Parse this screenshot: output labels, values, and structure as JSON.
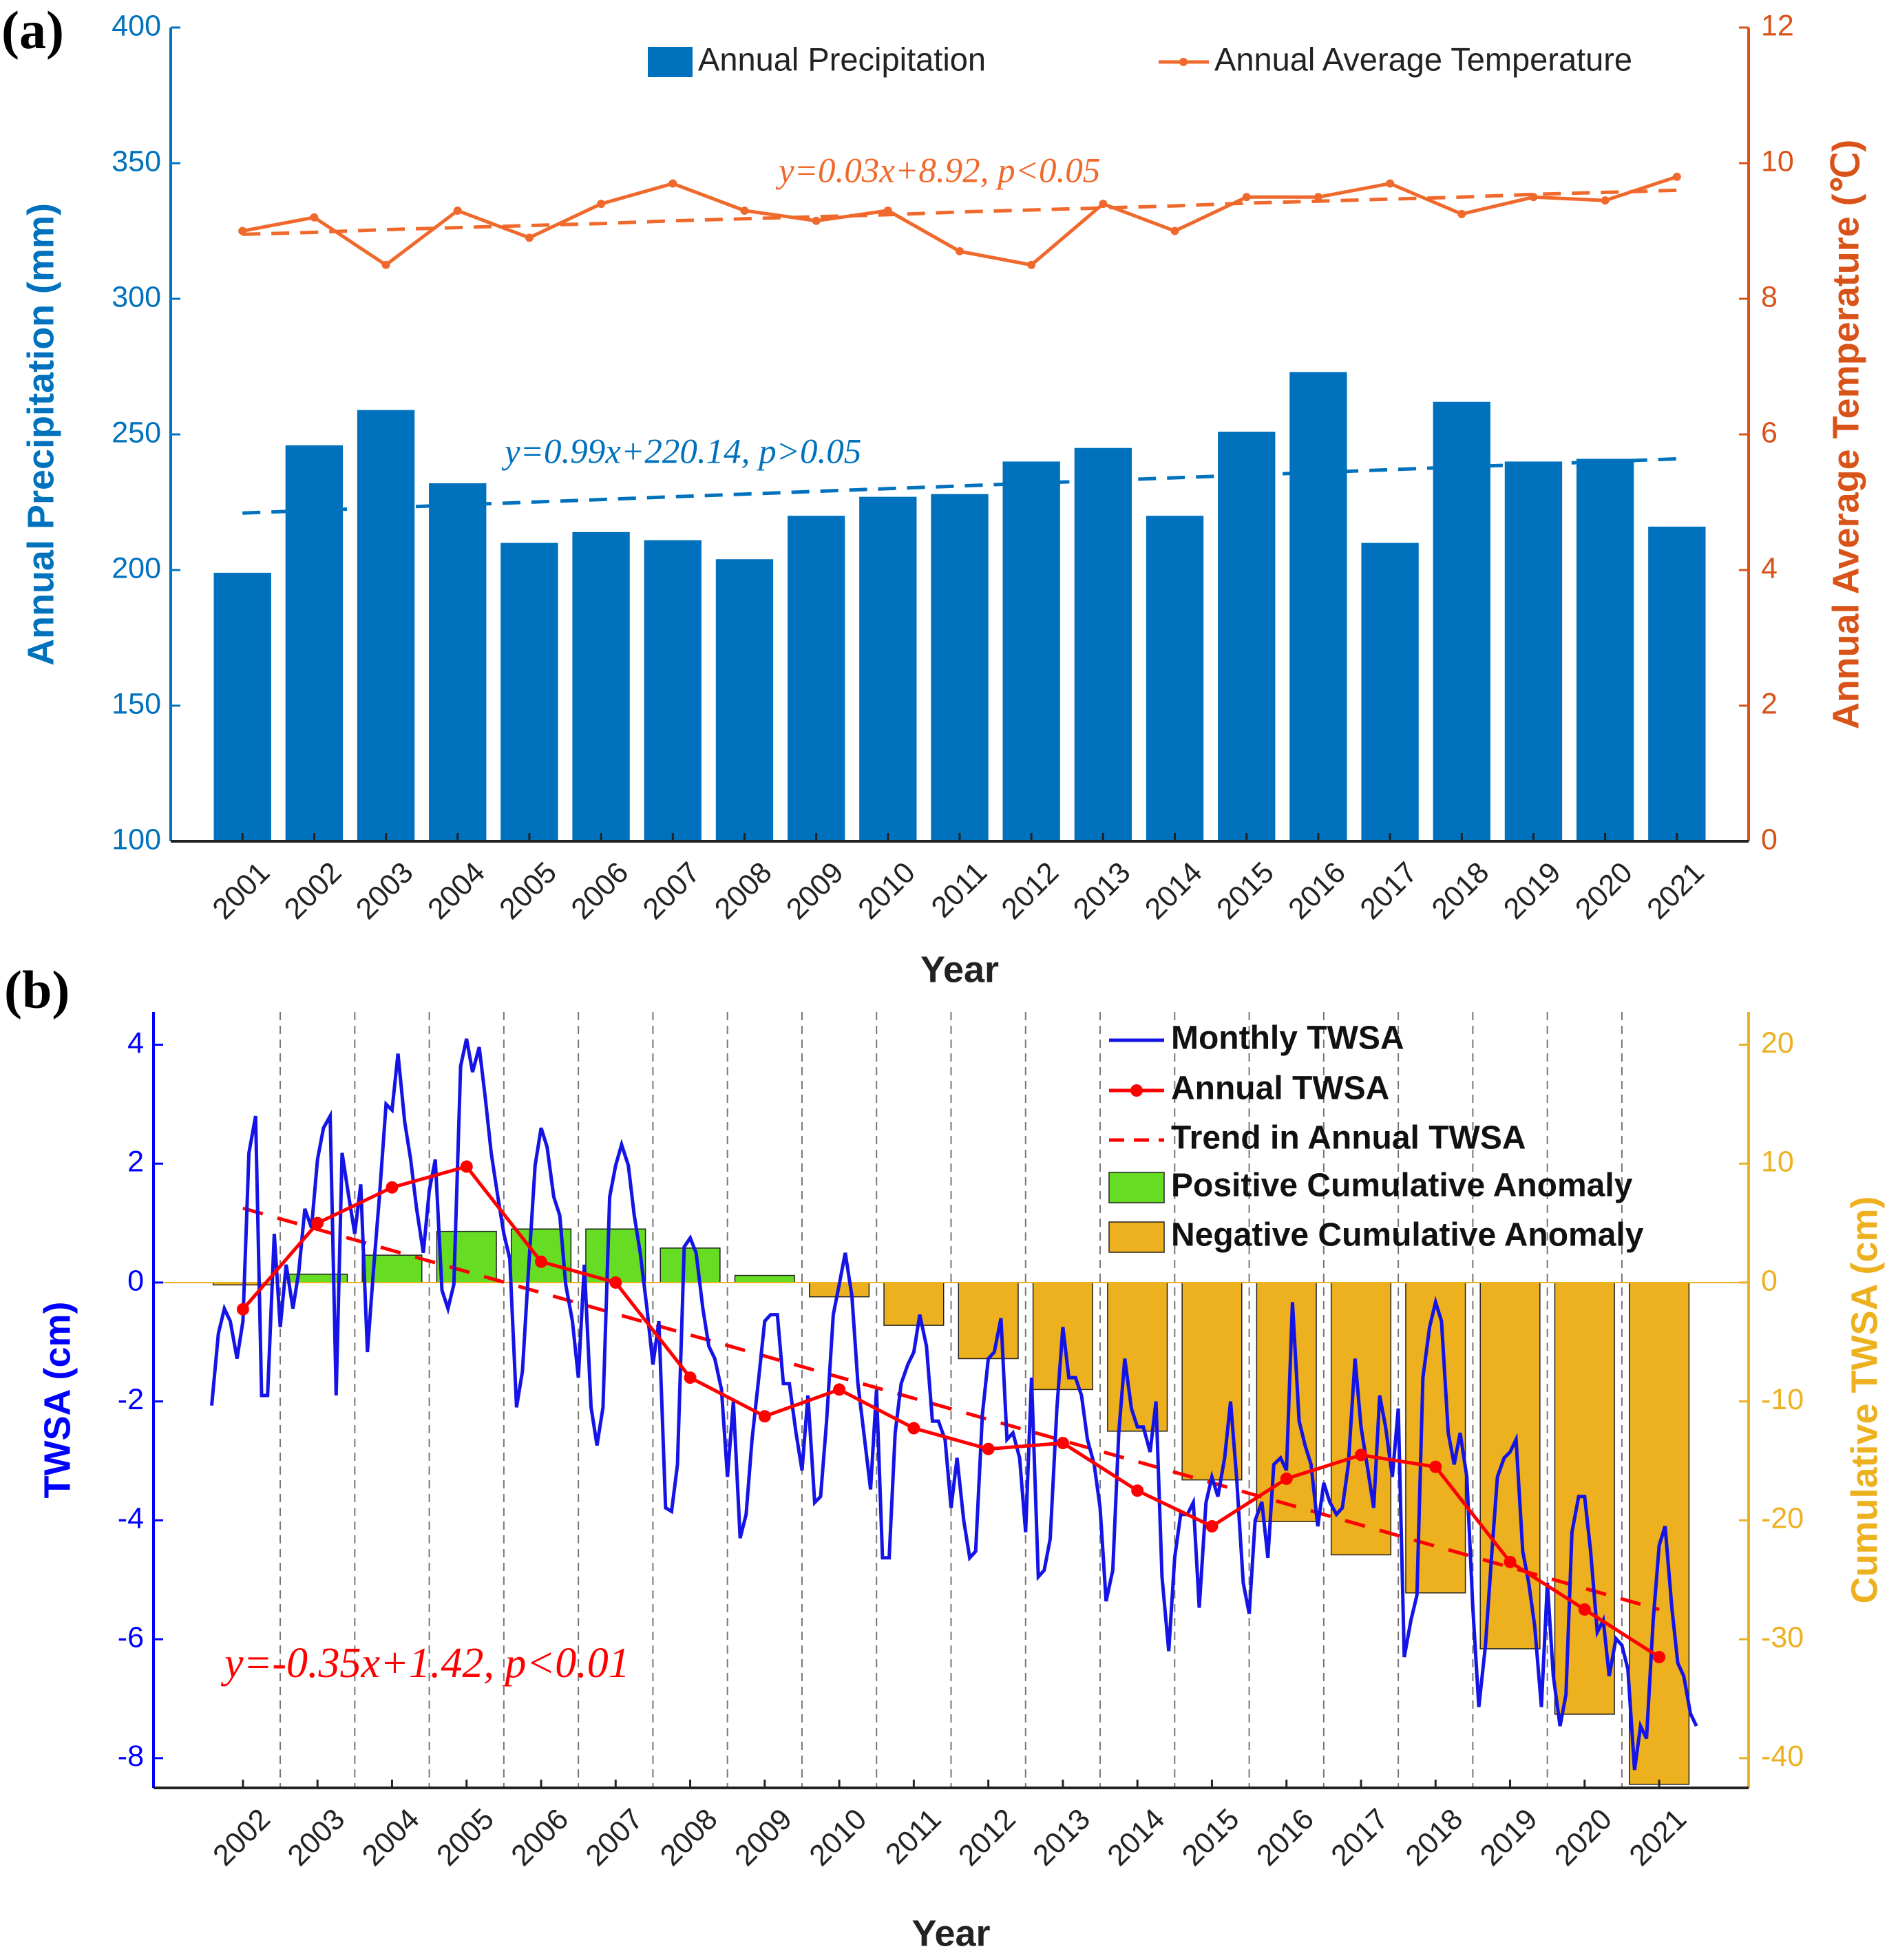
{
  "chart_data": [
    {
      "type": "bar_line",
      "label": "(a)",
      "ylabel": "Annual Precipitation (mm)",
      "y2label": "Annual Average Temperature (℃)",
      "xlabel": "Year",
      "categories": [
        "2001",
        "2002",
        "2003",
        "2004",
        "2005",
        "2006",
        "2007",
        "2008",
        "2009",
        "2010",
        "2011",
        "2012",
        "2013",
        "2014",
        "2015",
        "2016",
        "2017",
        "2018",
        "2019",
        "2020",
        "2021"
      ],
      "series": [
        {
          "name": "Annual Precipitation",
          "type": "bar",
          "color": "#0072bd",
          "values": [
            199,
            246,
            259,
            232,
            210,
            214,
            211,
            204,
            220,
            227,
            228,
            240,
            245,
            220,
            251,
            273,
            210,
            262,
            240,
            241,
            216
          ]
        },
        {
          "name": "Annual Average Temperature",
          "type": "line",
          "axis": "y2",
          "color": "#f0692c",
          "values": [
            9.0,
            9.2,
            8.5,
            9.3,
            8.9,
            9.4,
            9.7,
            9.3,
            9.15,
            9.3,
            8.7,
            8.5,
            9.4,
            9.0,
            9.5,
            9.5,
            9.7,
            9.25,
            9.5,
            9.45,
            9.8
          ]
        }
      ],
      "trend_lines": [
        {
          "color": "#0072bd",
          "values": [
            221,
            222,
            223,
            224,
            225,
            226,
            227,
            228,
            229,
            230,
            231,
            232,
            233,
            234,
            235,
            236,
            237,
            238,
            239,
            240,
            241
          ]
        },
        {
          "color": "#f0692c",
          "axis": "y2",
          "values": [
            8.95,
            8.98,
            9.02,
            9.05,
            9.08,
            9.11,
            9.15,
            9.18,
            9.21,
            9.24,
            9.28,
            9.31,
            9.34,
            9.37,
            9.41,
            9.44,
            9.47,
            9.5,
            9.54,
            9.57,
            9.6
          ]
        }
      ],
      "annotations": [
        "y=0.99x+220.14,  p>0.05",
        "y=0.03x+8.92,  p<0.05"
      ],
      "ylim": [
        100,
        400
      ],
      "yticks": [
        100,
        150,
        200,
        250,
        300,
        350,
        400
      ],
      "ycolor": "#0072bd",
      "y2lim": [
        0,
        12
      ],
      "y2ticks": [
        0,
        2,
        4,
        6,
        8,
        10,
        12
      ],
      "y2color": "#d95319",
      "legend_position": "top"
    },
    {
      "type": "line_bar",
      "label": "(b)",
      "ylabel": "TWSA (cm)",
      "y2label": "Cumulative TWSA (cm)",
      "xlabel": "Year",
      "series": [
        {
          "name": "Monthly TWSA",
          "type": "line",
          "color": "#1414e6",
          "x": [
            2001.58,
            2001.67,
            2001.75,
            2001.83,
            2001.92,
            2002,
            2002.08,
            2002.17,
            2002.25,
            2002.33,
            2002.42,
            2002.5,
            2002.58,
            2002.67,
            2002.75,
            2002.83,
            2002.92,
            2003,
            2003.08,
            2003.17,
            2003.25,
            2003.33,
            2003.42,
            2003.5,
            2003.58,
            2003.67,
            2003.75,
            2003.83,
            2003.92,
            2004,
            2004.08,
            2004.17,
            2004.25,
            2004.33,
            2004.42,
            2004.5,
            2004.58,
            2004.67,
            2004.75,
            2004.83,
            2004.92,
            2005,
            2005.08,
            2005.17,
            2005.25,
            2005.33,
            2005.42,
            2005.5,
            2005.58,
            2005.67,
            2005.75,
            2005.83,
            2005.92,
            2006,
            2006.08,
            2006.17,
            2006.25,
            2006.33,
            2006.42,
            2006.5,
            2006.58,
            2006.67,
            2006.75,
            2006.83,
            2006.92,
            2007,
            2007.08,
            2007.17,
            2007.25,
            2007.33,
            2007.42,
            2007.5,
            2007.58,
            2007.67,
            2007.75,
            2007.83,
            2007.92,
            2008,
            2008.08,
            2008.17,
            2008.25,
            2008.33,
            2008.42,
            2008.5,
            2008.58,
            2008.67,
            2008.75,
            2008.83,
            2008.92,
            2009,
            2009.08,
            2009.17,
            2009.25,
            2009.33,
            2009.42,
            2009.5,
            2009.58,
            2009.67,
            2009.75,
            2009.83,
            2009.92,
            2010,
            2010.08,
            2010.17,
            2010.25,
            2010.33,
            2010.42,
            2010.5,
            2010.58,
            2010.67,
            2010.75,
            2010.83,
            2010.92,
            2011,
            2011.08,
            2011.17,
            2011.25,
            2011.33,
            2011.42,
            2011.5,
            2011.58,
            2011.67,
            2011.75,
            2011.83,
            2011.92,
            2012,
            2012.08,
            2012.17,
            2012.25,
            2012.33,
            2012.42,
            2012.5,
            2012.58,
            2012.67,
            2012.75,
            2012.83,
            2012.92,
            2013,
            2013.08,
            2013.17,
            2013.25,
            2013.33,
            2013.42,
            2013.5,
            2013.58,
            2013.67,
            2013.75,
            2013.83,
            2013.92,
            2014,
            2014.08,
            2014.17,
            2014.25,
            2014.33,
            2014.42,
            2014.5,
            2014.58,
            2014.67,
            2014.75,
            2014.83,
            2014.92,
            2015,
            2015.08,
            2015.17,
            2015.25,
            2015.33,
            2015.42,
            2015.5,
            2015.58,
            2015.67,
            2015.75,
            2015.83,
            2015.92,
            2016,
            2016.08,
            2016.17,
            2016.25,
            2016.33,
            2016.42,
            2016.5,
            2016.58,
            2016.67,
            2016.75,
            2016.83,
            2016.92,
            2017,
            2017.08,
            2017.17,
            2017.25,
            2017.33,
            2017.42,
            2017.5,
            2017.58,
            2017.67,
            2017.75,
            2017.83,
            2017.92,
            2018,
            2018.08,
            2018.17,
            2018.25,
            2018.33,
            2018.42,
            2018.5,
            2018.58,
            2018.67,
            2018.75,
            2018.83,
            2018.92,
            2019,
            2019.08,
            2019.17,
            2019.25,
            2019.33,
            2019.42,
            2019.5,
            2019.58,
            2019.67,
            2019.75,
            2019.83,
            2019.92,
            2020,
            2020.08,
            2020.17,
            2020.25,
            2020.33,
            2020.42,
            2020.5,
            2020.58,
            2020.67,
            2020.75,
            2020.83,
            2020.92,
            2021,
            2021.08,
            2021.17,
            2021.25,
            2021.33,
            2021.42,
            2021.5
          ],
          "values": [
            -2.07,
            -0.86,
            -0.44,
            -0.65,
            -1.28,
            -0.65,
            2.18,
            2.8,
            -1.9,
            -1.9,
            0.82,
            -0.75,
            0.3,
            -0.44,
            0.19,
            1.24,
            0.92,
            2.07,
            2.6,
            2.8,
            -1.9,
            2.18,
            1.44,
            0.82,
            1.65,
            -1.17,
            0.19,
            1.44,
            3.0,
            2.9,
            3.85,
            2.7,
            2.07,
            1.24,
            0.5,
            1.55,
            2.07,
            -0.13,
            -0.44,
            -0.03,
            3.64,
            4.1,
            3.54,
            3.96,
            3.12,
            2.18,
            1.44,
            0.82,
            0.4,
            -2.1,
            -1.49,
            0.19,
            1.97,
            2.6,
            2.28,
            1.44,
            1.13,
            -0.03,
            -0.65,
            -1.6,
            0.3,
            -2.1,
            -2.74,
            -2.1,
            1.44,
            1.97,
            2.32,
            1.97,
            1.13,
            0.5,
            -0.44,
            -1.38,
            -0.65,
            -3.79,
            -3.85,
            -3.06,
            0.6,
            0.75,
            0.5,
            -0.44,
            -1.07,
            -1.28,
            -1.8,
            -3.27,
            -2.0,
            -4.3,
            -3.9,
            -2.64,
            -1.6,
            -0.65,
            -0.54,
            -0.54,
            -1.7,
            -1.7,
            -2.53,
            -3.16,
            -1.9,
            -3.7,
            -3.6,
            -2.33,
            -0.54,
            -0.03,
            0.5,
            -0.23,
            -1.7,
            -2.53,
            -3.48,
            -1.8,
            -4.63,
            -4.63,
            -2.53,
            -1.7,
            -1.38,
            -1.17,
            -0.54,
            -1.07,
            -2.33,
            -2.33,
            -2.64,
            -3.79,
            -2.95,
            -4.0,
            -4.63,
            -4.52,
            -2.22,
            -1.28,
            -1.17,
            -0.6,
            -2.64,
            -2.53,
            -2.95,
            -4.2,
            -1.6,
            -4.95,
            -4.84,
            -4.31,
            -2.12,
            -0.75,
            -1.6,
            -1.6,
            -1.9,
            -2.64,
            -3.06,
            -3.79,
            -5.36,
            -4.84,
            -2.53,
            -1.28,
            -2.12,
            -2.43,
            -2.43,
            -2.85,
            -2.0,
            -4.95,
            -6.2,
            -4.63,
            -3.9,
            -3.9,
            -3.7,
            -5.47,
            -3.7,
            -3.27,
            -3.6,
            -2.95,
            -2.0,
            -3.27,
            -5.05,
            -5.57,
            -4.0,
            -3.69,
            -4.63,
            -3.06,
            -2.95,
            -3.16,
            -0.33,
            -2.33,
            -2.74,
            -3.06,
            -4.1,
            -3.37,
            -3.69,
            -3.9,
            -3.79,
            -3.06,
            -1.28,
            -2.43,
            -3.06,
            -3.79,
            -1.9,
            -2.43,
            -3.27,
            -2.12,
            -6.3,
            -5.68,
            -5.26,
            -1.6,
            -0.75,
            -0.33,
            -0.65,
            -2.53,
            -3.06,
            -2.53,
            -3.27,
            -5.47,
            -7.14,
            -6.1,
            -4.63,
            -3.27,
            -2.95,
            -2.85,
            -2.64,
            -4.52,
            -5.05,
            -5.78,
            -7.14,
            -5.05,
            -6.62,
            -7.46,
            -6.93,
            -4.2,
            -3.6,
            -3.6,
            -4.52,
            -5.88,
            -5.68,
            -6.62,
            -5.99,
            -6.1,
            -6.5,
            -8.2,
            -7.46,
            -7.67,
            -5.68,
            -4.42,
            -4.1,
            -5.47,
            -6.4,
            -6.62,
            -7.25,
            -7.46
          ]
        },
        {
          "name": "Annual TWSA",
          "type": "line_marker",
          "color": "#ff0000",
          "x": [
            2002,
            2003,
            2004,
            2005,
            2006,
            2007,
            2008,
            2009,
            2010,
            2011,
            2012,
            2013,
            2014,
            2015,
            2016,
            2017,
            2018,
            2019,
            2020,
            2021
          ],
          "values": [
            -0.45,
            1.0,
            1.6,
            1.95,
            0.35,
            0.0,
            -1.6,
            -2.25,
            -1.8,
            -2.45,
            -2.8,
            -2.7,
            -3.5,
            -4.1,
            -3.3,
            -2.9,
            -3.1,
            -4.7,
            -5.5,
            -6.3
          ]
        },
        {
          "name": "Trend in Annual TWSA",
          "type": "dashed",
          "color": "#ff0000",
          "x": [
            2002,
            2021
          ],
          "values": [
            1.25,
            -5.5
          ]
        },
        {
          "name": "Positive Cumulative Anomaly",
          "type": "bar",
          "axis": "y2",
          "color": "#66dd22",
          "x": [
            2002,
            2003,
            2004,
            2005,
            2006,
            2007,
            2008,
            2009,
            2010,
            2011,
            2012,
            2013,
            2014,
            2015,
            2016,
            2017,
            2018,
            2019,
            2020,
            2021
          ],
          "values": [
            null,
            0.7,
            2.3,
            4.3,
            4.5,
            4.5,
            2.9,
            0.6,
            null,
            null,
            null,
            null,
            null,
            null,
            null,
            null,
            null,
            null,
            null,
            null
          ]
        },
        {
          "name": "Negative Cumulative Anomaly",
          "type": "bar",
          "axis": "y2",
          "color": "#edb120",
          "x": [
            2002,
            2003,
            2004,
            2005,
            2006,
            2007,
            2008,
            2009,
            2010,
            2011,
            2012,
            2013,
            2014,
            2015,
            2016,
            2017,
            2018,
            2019,
            2020,
            2021
          ],
          "values": [
            -0.2,
            null,
            null,
            null,
            null,
            null,
            null,
            null,
            -1.2,
            -3.6,
            -6.4,
            -9.0,
            -12.5,
            -16.6,
            -20.1,
            -22.9,
            -26.1,
            -30.8,
            -36.3,
            -42.2
          ]
        }
      ],
      "annotations": [
        "y=-0.35x+1.42,  p<0.01"
      ],
      "xlim": [
        2000.8,
        2022.2
      ],
      "xticks": [
        2002,
        2003,
        2004,
        2005,
        2006,
        2007,
        2008,
        2009,
        2010,
        2011,
        2012,
        2013,
        2014,
        2015,
        2016,
        2017,
        2018,
        2019,
        2020,
        2021
      ],
      "ylim": [
        -8.5,
        4.55
      ],
      "yticks": [
        -8,
        -6,
        -4,
        -2,
        0,
        2,
        4
      ],
      "ycolor": "#0000ff",
      "y2lim": [
        -42.5,
        22.75
      ],
      "y2ticks": [
        -40,
        -30,
        -20,
        -10,
        0,
        10,
        20
      ],
      "y2color": "#edb120",
      "legend_position": "top right"
    }
  ]
}
